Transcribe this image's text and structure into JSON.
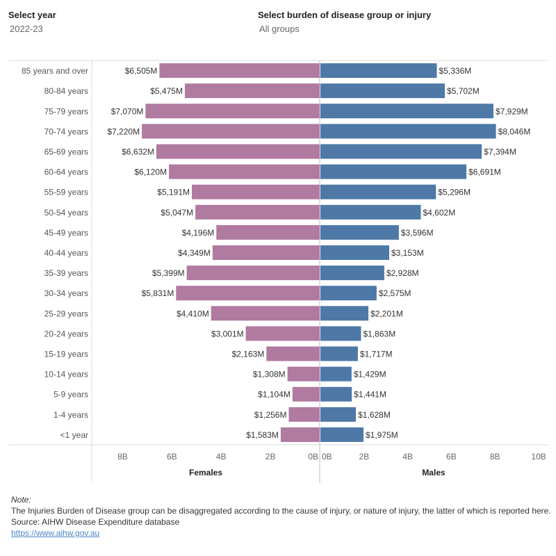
{
  "filters": {
    "year": {
      "label": "Select year",
      "value": "2022-23"
    },
    "group": {
      "label": "Select burden of disease group or injury",
      "value": "All groups"
    }
  },
  "chart_data": {
    "type": "bar",
    "orientation": "horizontal-butterfly",
    "categories": [
      "85 years and over",
      "80-84 years",
      "75-79 years",
      "70-74 years",
      "65-69 years",
      "60-64 years",
      "55-59 years",
      "50-54 years",
      "45-49 years",
      "40-44 years",
      "35-39 years",
      "30-34 years",
      "25-29 years",
      "20-24 years",
      "15-19 years",
      "10-14 years",
      "5-9 years",
      "1-4 years",
      "<1 year"
    ],
    "series": [
      {
        "name": "Females",
        "color": "#b07aa1",
        "values": [
          6505,
          5475,
          7070,
          7220,
          6632,
          6120,
          5191,
          5047,
          4196,
          4349,
          5399,
          5831,
          4410,
          3001,
          2163,
          1308,
          1104,
          1256,
          1583
        ],
        "labels": [
          "$6,505M",
          "$5,475M",
          "$7,070M",
          "$7,220M",
          "$6,632M",
          "$6,120M",
          "$5,191M",
          "$5,047M",
          "$4,196M",
          "$4,349M",
          "$5,399M",
          "$5,831M",
          "$4,410M",
          "$3,001M",
          "$2,163M",
          "$1,308M",
          "$1,104M",
          "$1,256M",
          "$1,583M"
        ],
        "xlim": [
          0,
          9000
        ],
        "ticks": [
          8000,
          6000,
          4000,
          2000,
          0
        ],
        "tick_labels": [
          "8B",
          "6B",
          "4B",
          "2B",
          "0B"
        ]
      },
      {
        "name": "Males",
        "color": "#4e79a7",
        "values": [
          5336,
          5702,
          7929,
          8046,
          7394,
          6691,
          5296,
          4602,
          3596,
          3153,
          2928,
          2575,
          2201,
          1863,
          1717,
          1429,
          1441,
          1628,
          1975
        ],
        "labels": [
          "$5,336M",
          "$5,702M",
          "$7,929M",
          "$8,046M",
          "$7,394M",
          "$6,691M",
          "$5,296M",
          "$4,602M",
          "$3,596M",
          "$3,153M",
          "$2,928M",
          "$2,575M",
          "$2,201M",
          "$1,863M",
          "$1,717M",
          "$1,429M",
          "$1,441M",
          "$1,628M",
          "$1,975M"
        ],
        "xlim": [
          0,
          10000
        ],
        "ticks": [
          0,
          2000,
          4000,
          6000,
          8000,
          10000
        ],
        "tick_labels": [
          "0B",
          "2B",
          "4B",
          "6B",
          "8B",
          "10B"
        ]
      }
    ],
    "units": "Millions of dollars"
  },
  "note": {
    "title": "Note:",
    "text": "The Injuries Burden of Disease group can be disaggregated according to the cause of injury, or nature of injury, the latter of which is reported here.",
    "source": "Source: AIHW Disease Expenditure database",
    "link": "https://www.aihw.gov.au"
  }
}
